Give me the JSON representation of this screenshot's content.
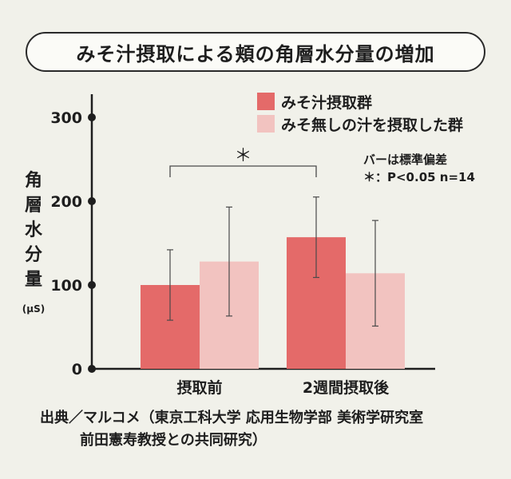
{
  "title": "みそ汁摂取による頬の角層水分量の増加",
  "chart_data": {
    "type": "bar",
    "categories": [
      "摂取前",
      "2週間摂取後"
    ],
    "series": [
      {
        "name": "みそ汁摂取群",
        "values": [
          100,
          157
        ],
        "error": [
          42,
          48
        ],
        "color": "#e46a69"
      },
      {
        "name": "みそ無しの汁を摂取した群",
        "values": [
          128,
          114
        ],
        "error": [
          65,
          63
        ],
        "color": "#f2c3c0"
      }
    ],
    "ylabel": "角層水分量",
    "yunit": "(μS)",
    "ylim": [
      0,
      300
    ],
    "yticks": [
      0,
      100,
      200,
      300
    ],
    "ytick_labels": [
      "0",
      "100",
      "200",
      "300"
    ],
    "grid": false,
    "legend_position": "top-right",
    "significance_mark": "＊",
    "notes": [
      "バーは標準偏差",
      "＊：P<0.05 n=14"
    ]
  },
  "source": {
    "line1": "出典／マルコメ（東京工科大学 応用生物学部 美術学研究室",
    "line2": "前田憲寿教授との共同研究）"
  }
}
